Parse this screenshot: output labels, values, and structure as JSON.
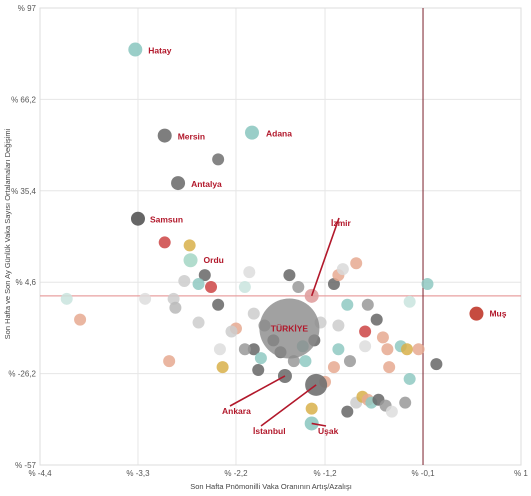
{
  "chart_data": {
    "type": "scatter",
    "xlabel": "Son Hafta Pnömonilli Vaka Oranının Artış/Azalışı",
    "ylabel": "Son Hafta ve Son Ay Günlük Vaka Sayısı Ortalamaları Değişimi",
    "xlim": [
      -4.4,
      1
    ],
    "ylim": [
      -57,
      97
    ],
    "xticks": [
      "% -4,4",
      "% -3,3",
      "% -2,2",
      "% -1,2",
      "% -0,1",
      "% 1"
    ],
    "yticks": [
      "% 97",
      "% 66,2",
      "% 35,4",
      "% 4,6",
      "% -26,2",
      "% -57"
    ],
    "xtick_values": [
      -4.4,
      -3.3,
      -2.2,
      -1.2,
      -0.1,
      1
    ],
    "ytick_values": [
      97,
      66.2,
      35.4,
      4.6,
      -26.2,
      -57
    ],
    "reference_lines": {
      "x": -0.1,
      "y": 0
    },
    "grid": true,
    "colors": {
      "labeled": "#b2182b",
      "reference": "#e8a0a0",
      "vertical_ref": "#7a1f2b"
    },
    "labeled_points": [
      {
        "name": "Hatay",
        "x": -3.33,
        "y": 83,
        "color": "#8fc9c2"
      },
      {
        "name": "Mersin",
        "x": -3.0,
        "y": 54,
        "color": "#707070"
      },
      {
        "name": "Adana",
        "x": -2.02,
        "y": 55,
        "color": "#8fc9c2"
      },
      {
        "name": "Antalya",
        "x": -2.85,
        "y": 38,
        "color": "#707070"
      },
      {
        "name": "Samsun",
        "x": -3.3,
        "y": 26,
        "color": "#555555"
      },
      {
        "name": "Ordu",
        "x": -2.71,
        "y": 12,
        "color": "#a8d8c8"
      },
      {
        "name": "Muş",
        "x": 0.5,
        "y": -6,
        "color": "#c0392b"
      },
      {
        "name": "TÜRKİYE",
        "x": -1.6,
        "y": -11,
        "color": "#8a8a8a"
      },
      {
        "name": "İzmir",
        "x": -1.35,
        "y": 0,
        "color": "#e0a0a0"
      },
      {
        "name": "Ankara",
        "x": -1.65,
        "y": -27,
        "color": "#707070"
      },
      {
        "name": "İstanbul",
        "x": -1.3,
        "y": -30,
        "color": "#707070"
      },
      {
        "name": "Uşak",
        "x": -1.35,
        "y": -43,
        "color": "#8fc9c2"
      }
    ],
    "points": [
      {
        "x": -2.4,
        "y": 46,
        "color": "#707070"
      },
      {
        "x": -3.0,
        "y": 18,
        "color": "#cc4444"
      },
      {
        "x": -2.72,
        "y": 17,
        "color": "#d8b04a"
      },
      {
        "x": -2.55,
        "y": 7,
        "color": "#666666"
      },
      {
        "x": -2.78,
        "y": 5,
        "color": "#cccccc"
      },
      {
        "x": -2.48,
        "y": 3,
        "color": "#cc4444"
      },
      {
        "x": -2.62,
        "y": 4,
        "color": "#8fc9c2"
      },
      {
        "x": -2.05,
        "y": 8,
        "color": "#dddddd"
      },
      {
        "x": -2.1,
        "y": 3,
        "color": "#c9e4de"
      },
      {
        "x": -1.6,
        "y": 7,
        "color": "#666666"
      },
      {
        "x": -1.5,
        "y": 3,
        "color": "#999999"
      },
      {
        "x": -1.1,
        "y": 4,
        "color": "#666666"
      },
      {
        "x": -1.05,
        "y": 7,
        "color": "#e6a990"
      },
      {
        "x": -1.0,
        "y": 9,
        "color": "#d9d9d9"
      },
      {
        "x": -0.85,
        "y": 11,
        "color": "#e6a990"
      },
      {
        "x": -0.05,
        "y": 4,
        "color": "#8fc9c2"
      },
      {
        "x": -4.1,
        "y": -1,
        "color": "#c9e4de"
      },
      {
        "x": -3.95,
        "y": -8,
        "color": "#e6a990"
      },
      {
        "x": -3.22,
        "y": -1,
        "color": "#dddddd"
      },
      {
        "x": -2.9,
        "y": -1,
        "color": "#cccccc"
      },
      {
        "x": -2.88,
        "y": -4,
        "color": "#b8b8b8"
      },
      {
        "x": -2.62,
        "y": -9,
        "color": "#cccccc"
      },
      {
        "x": -2.4,
        "y": -3,
        "color": "#666666"
      },
      {
        "x": -2.2,
        "y": -11,
        "color": "#e6a990"
      },
      {
        "x": -2.25,
        "y": -12,
        "color": "#cccccc"
      },
      {
        "x": -2.0,
        "y": -6,
        "color": "#cccccc"
      },
      {
        "x": -1.88,
        "y": -10,
        "color": "#999999"
      },
      {
        "x": -1.78,
        "y": -15,
        "color": "#666666"
      },
      {
        "x": -2.38,
        "y": -18,
        "color": "#dddddd"
      },
      {
        "x": -2.0,
        "y": -18,
        "color": "#666666"
      },
      {
        "x": -1.92,
        "y": -21,
        "color": "#8fc9c2"
      },
      {
        "x": -1.55,
        "y": -22,
        "color": "#999999"
      },
      {
        "x": -1.45,
        "y": -17,
        "color": "#8fc9c2"
      },
      {
        "x": -1.32,
        "y": -15,
        "color": "#666666"
      },
      {
        "x": -1.25,
        "y": -9,
        "color": "#cccccc"
      },
      {
        "x": -0.95,
        "y": -3,
        "color": "#8fc9c2"
      },
      {
        "x": -1.05,
        "y": -10,
        "color": "#cccccc"
      },
      {
        "x": -0.72,
        "y": -3,
        "color": "#999999"
      },
      {
        "x": -0.62,
        "y": -8,
        "color": "#666666"
      },
      {
        "x": -0.25,
        "y": -2,
        "color": "#c9e4de"
      },
      {
        "x": -0.75,
        "y": -12,
        "color": "#cc4444"
      },
      {
        "x": -0.55,
        "y": -14,
        "color": "#e6a990"
      },
      {
        "x": -0.75,
        "y": -17,
        "color": "#dddddd"
      },
      {
        "x": -0.35,
        "y": -17,
        "color": "#8fc9c2"
      },
      {
        "x": -0.5,
        "y": -18,
        "color": "#e6a990"
      },
      {
        "x": -0.28,
        "y": -18,
        "color": "#d8b04a"
      },
      {
        "x": -0.15,
        "y": -18,
        "color": "#e6a990"
      },
      {
        "x": -1.05,
        "y": -18,
        "color": "#8fc9c2"
      },
      {
        "x": -0.92,
        "y": -22,
        "color": "#999999"
      },
      {
        "x": -1.42,
        "y": -22,
        "color": "#8fc9c2"
      },
      {
        "x": -2.95,
        "y": -22,
        "color": "#e6a990"
      },
      {
        "x": -2.35,
        "y": -24,
        "color": "#d8b04a"
      },
      {
        "x": -1.95,
        "y": -25,
        "color": "#666666"
      },
      {
        "x": -1.1,
        "y": -24,
        "color": "#e6a990"
      },
      {
        "x": -0.48,
        "y": -24,
        "color": "#e6a990"
      },
      {
        "x": 0.05,
        "y": -23,
        "color": "#666666"
      },
      {
        "x": -0.25,
        "y": -28,
        "color": "#8fc9c2"
      },
      {
        "x": -1.2,
        "y": -29,
        "color": "#e6a990"
      },
      {
        "x": -1.35,
        "y": -38,
        "color": "#d8b04a"
      },
      {
        "x": -0.85,
        "y": -36,
        "color": "#cccccc"
      },
      {
        "x": -0.78,
        "y": -34,
        "color": "#d8b04a"
      },
      {
        "x": -0.72,
        "y": -35,
        "color": "#e6a990"
      },
      {
        "x": -0.68,
        "y": -36,
        "color": "#8fc9c2"
      },
      {
        "x": -0.6,
        "y": -35,
        "color": "#666666"
      },
      {
        "x": -0.52,
        "y": -37,
        "color": "#999999"
      },
      {
        "x": -0.45,
        "y": -39,
        "color": "#dddddd"
      },
      {
        "x": -0.3,
        "y": -36,
        "color": "#999999"
      },
      {
        "x": -0.95,
        "y": -39,
        "color": "#666666"
      },
      {
        "x": -2.1,
        "y": -18,
        "color": "#999999"
      },
      {
        "x": -1.7,
        "y": -19,
        "color": "#666666"
      }
    ]
  }
}
